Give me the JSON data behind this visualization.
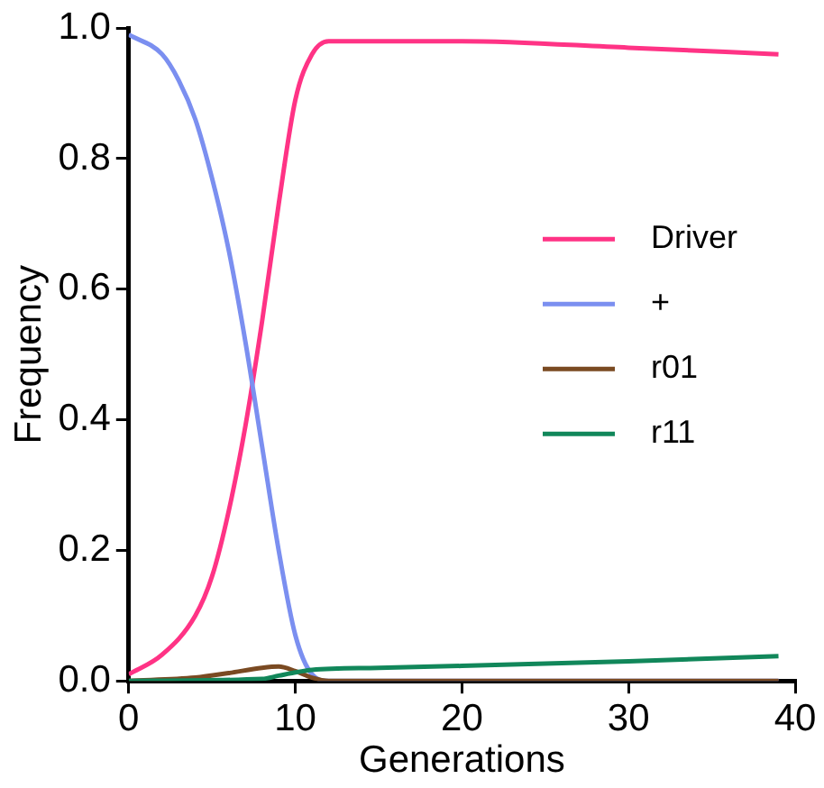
{
  "chart_data": {
    "type": "line",
    "xlabel": "Generations",
    "ylabel": "Frequency",
    "xlim": [
      0,
      40
    ],
    "xticks": [
      0,
      10,
      20,
      30,
      40
    ],
    "ylim": [
      0,
      1
    ],
    "yticks": [
      {
        "value": 0,
        "label": "0.0"
      },
      {
        "value": 0.2,
        "label": "0.2"
      },
      {
        "value": 0.4,
        "label": "0.4"
      },
      {
        "value": 0.6,
        "label": "0.6"
      },
      {
        "value": 0.8,
        "label": "0.8"
      },
      {
        "value": 1,
        "label": "1.0"
      }
    ],
    "grid": false,
    "legend": "right",
    "marker": "none",
    "line_style": "solid",
    "series": [
      {
        "name": "Driver",
        "color": "#ff3385",
        "x": [
          0,
          2,
          4,
          5,
          6,
          7,
          8,
          9,
          10,
          11,
          12,
          13,
          20,
          30,
          39
        ],
        "values": [
          0.01,
          0.04,
          0.1,
          0.16,
          0.26,
          0.39,
          0.55,
          0.73,
          0.89,
          0.96,
          0.98,
          0.98,
          0.98,
          0.97,
          0.96
        ]
      },
      {
        "name": "+",
        "color": "#7b8ff0",
        "x": [
          0,
          2,
          3,
          4,
          5,
          6,
          7,
          8,
          9,
          10,
          11,
          12,
          39
        ],
        "values": [
          0.99,
          0.96,
          0.92,
          0.86,
          0.77,
          0.66,
          0.52,
          0.36,
          0.2,
          0.07,
          0.01,
          0,
          0
        ]
      },
      {
        "name": "r01",
        "color": "#7a4a22",
        "x": [
          0,
          4,
          6,
          8,
          9,
          10,
          11,
          12,
          39
        ],
        "values": [
          0,
          0.005,
          0.012,
          0.02,
          0.022,
          0.015,
          0.005,
          0,
          0
        ]
      },
      {
        "name": "r11",
        "color": "#11875a",
        "x": [
          0,
          8,
          9,
          10,
          11,
          15,
          20,
          30,
          39
        ],
        "values": [
          0,
          0.003,
          0.008,
          0.013,
          0.017,
          0.02,
          0.023,
          0.03,
          0.038
        ]
      }
    ]
  }
}
